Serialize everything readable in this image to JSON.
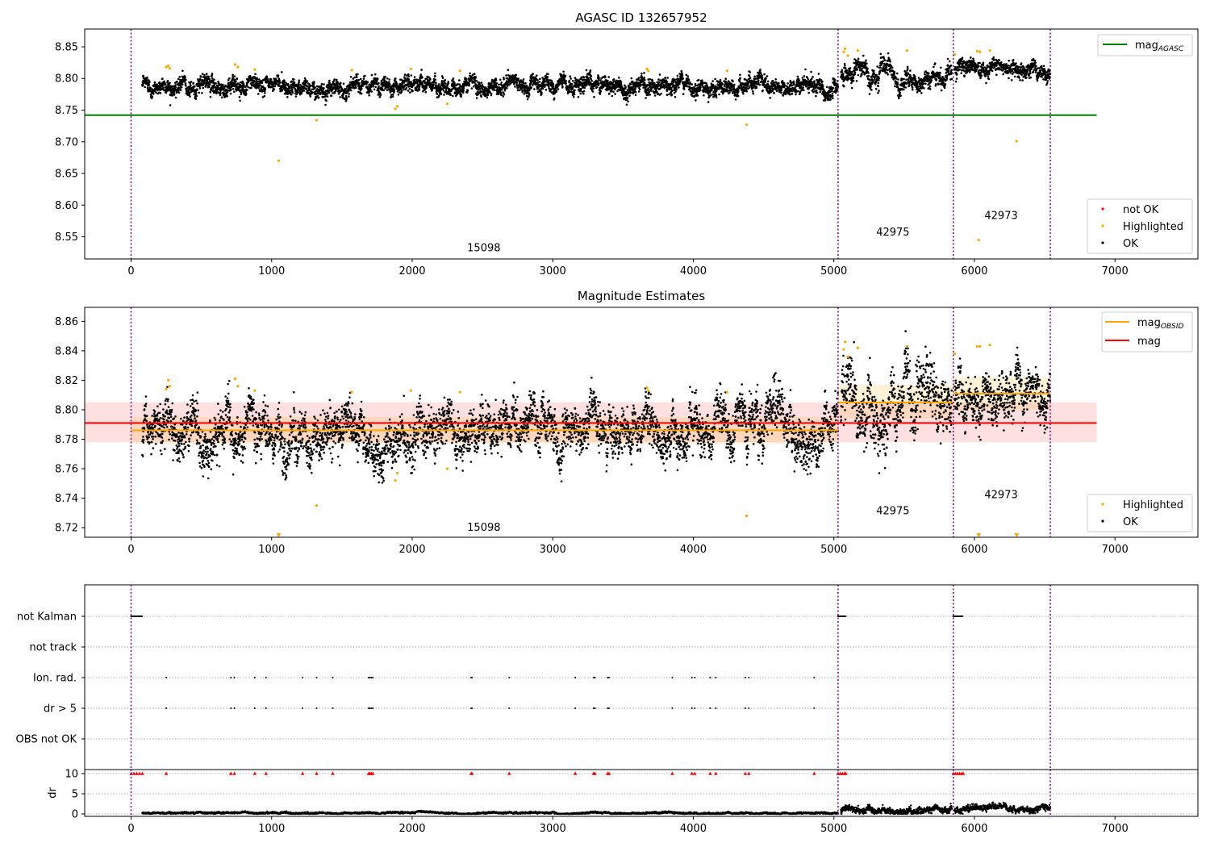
{
  "chart_data": [
    {
      "type": "scatter",
      "title": "AGASC ID 132657952",
      "xlim": [
        -330,
        7590
      ],
      "ylim": [
        8.515,
        8.878
      ],
      "xticks": [
        0,
        1000,
        2000,
        3000,
        4000,
        5000,
        6000,
        7000
      ],
      "yticks": [
        8.55,
        8.6,
        8.65,
        8.7,
        8.75,
        8.8,
        8.85
      ],
      "grid": false,
      "legend_top": {
        "position": "top-right",
        "entries": [
          {
            "label": "mag",
            "sub": "AGASC",
            "color": "#008000",
            "kind": "line"
          }
        ]
      },
      "legend_bottom": {
        "position": "bottom-right",
        "entries": [
          {
            "label": "not OK",
            "color": "#ff0000",
            "kind": "point"
          },
          {
            "label": "Highlighted",
            "color": "#ffa500",
            "kind": "point"
          },
          {
            "label": "OK",
            "color": "#000000",
            "kind": "point"
          }
        ]
      },
      "hlines": [
        {
          "y": 8.742,
          "x": [
            -330,
            6870
          ],
          "color": "#008000",
          "name": "mag_AGASC"
        }
      ],
      "vlines": [
        0,
        5030,
        5850,
        6540
      ],
      "annotations": [
        {
          "text": "15098",
          "x": 2510,
          "y": 8.527
        },
        {
          "text": "42975",
          "x": 5420,
          "y": 8.552
        },
        {
          "text": "42973",
          "x": 6190,
          "y": 8.578
        }
      ],
      "series": [
        {
          "name": "OK",
          "color": "#000000",
          "segments": [
            {
              "x": [
                80,
                5030
              ],
              "mean": 8.789,
              "sd": 0.007
            },
            {
              "x": [
                5050,
                5840
              ],
              "mean": 8.806,
              "sd": 0.009
            },
            {
              "x": [
                5860,
                6540
              ],
              "mean": 8.812,
              "sd": 0.007
            }
          ]
        },
        {
          "name": "Highlighted",
          "color": "#ffa500",
          "points": [
            [
              250,
              8.818
            ],
            [
              265,
              8.82
            ],
            [
              275,
              8.816
            ],
            [
              740,
              8.822
            ],
            [
              760,
              8.818
            ],
            [
              880,
              8.814
            ],
            [
              1050,
              8.67
            ],
            [
              1320,
              8.734
            ],
            [
              1570,
              8.813
            ],
            [
              1880,
              8.752
            ],
            [
              1895,
              8.756
            ],
            [
              1990,
              8.815
            ],
            [
              2250,
              8.76
            ],
            [
              2340,
              8.812
            ],
            [
              3670,
              8.815
            ],
            [
              3680,
              8.812
            ],
            [
              4240,
              8.812
            ],
            [
              4380,
              8.727
            ],
            [
              5080,
              8.847
            ],
            [
              5070,
              8.842
            ],
            [
              5100,
              8.836
            ],
            [
              5170,
              8.844
            ],
            [
              5520,
              8.844
            ],
            [
              5860,
              8.838
            ],
            [
              6020,
              8.843
            ],
            [
              6040,
              8.842
            ],
            [
              6030,
              8.545
            ],
            [
              6110,
              8.844
            ],
            [
              6300,
              8.701
            ]
          ]
        }
      ]
    },
    {
      "type": "scatter",
      "title": "Magnitude Estimates",
      "xlim": [
        -330,
        7590
      ],
      "ylim": [
        8.7135,
        8.8695
      ],
      "xticks": [
        0,
        1000,
        2000,
        3000,
        4000,
        5000,
        6000,
        7000
      ],
      "yticks": [
        8.72,
        8.74,
        8.76,
        8.78,
        8.8,
        8.82,
        8.84,
        8.86
      ],
      "grid": false,
      "legend_top": {
        "position": "top-right",
        "entries": [
          {
            "label": "mag",
            "sub": "OBSID",
            "color": "#ffa500",
            "kind": "line"
          },
          {
            "label": "mag",
            "color": "#ff0000",
            "kind": "line"
          }
        ]
      },
      "legend_bottom": {
        "position": "bottom-right",
        "entries": [
          {
            "label": "Highlighted",
            "color": "#ffa500",
            "kind": "point"
          },
          {
            "label": "OK",
            "color": "#000000",
            "kind": "point"
          }
        ]
      },
      "mag": {
        "y": 8.791,
        "band": [
          8.778,
          8.805
        ],
        "x": [
          -330,
          6870
        ],
        "color": "#ff0000"
      },
      "obsid": [
        {
          "x": [
            0,
            5030
          ],
          "y": 8.786,
          "band": [
            8.777,
            8.795
          ]
        },
        {
          "x": [
            5030,
            5850
          ],
          "y": 8.805,
          "band": [
            8.794,
            8.817
          ]
        },
        {
          "x": [
            5850,
            6540
          ],
          "y": 8.811,
          "band": [
            8.8,
            8.822
          ]
        }
      ],
      "vlines": [
        0,
        5030,
        5850,
        6540
      ],
      "annotations": [
        {
          "text": "15098",
          "x": 2510,
          "y": 8.718
        },
        {
          "text": "42975",
          "x": 5420,
          "y": 8.729
        },
        {
          "text": "42973",
          "x": 6190,
          "y": 8.74
        }
      ],
      "series": [
        {
          "name": "OK",
          "color": "#000000",
          "segments": [
            {
              "x": [
                80,
                5030
              ],
              "mean": 8.786,
              "sd": 0.009
            },
            {
              "x": [
                5050,
                5840
              ],
              "mean": 8.805,
              "sd": 0.012
            },
            {
              "x": [
                5860,
                6540
              ],
              "mean": 8.811,
              "sd": 0.009
            }
          ]
        },
        {
          "name": "Highlighted",
          "color": "#ffa500",
          "points": [
            [
              250,
              8.814
            ],
            [
              265,
              8.82
            ],
            [
              275,
              8.816
            ],
            [
              740,
              8.821
            ],
            [
              760,
              8.816
            ],
            [
              880,
              8.813
            ],
            [
              1320,
              8.735
            ],
            [
              1570,
              8.812
            ],
            [
              1880,
              8.752
            ],
            [
              1895,
              8.757
            ],
            [
              1990,
              8.813
            ],
            [
              2250,
              8.76
            ],
            [
              2340,
              8.812
            ],
            [
              3670,
              8.815
            ],
            [
              3680,
              8.813
            ],
            [
              4240,
              8.812
            ],
            [
              4380,
              8.728
            ],
            [
              5080,
              8.846
            ],
            [
              5070,
              8.841
            ],
            [
              5100,
              8.836
            ],
            [
              5170,
              8.842
            ],
            [
              5520,
              8.843
            ],
            [
              5860,
              8.838
            ],
            [
              6020,
              8.843
            ],
            [
              6040,
              8.843
            ],
            [
              6110,
              8.844
            ]
          ]
        },
        {
          "name": "Highlighted (below range)",
          "color": "#ffa500",
          "marker": "triangle-down",
          "points": [
            [
              1050,
              8.714
            ],
            [
              6030,
              8.714
            ],
            [
              6300,
              8.714
            ]
          ]
        }
      ]
    },
    {
      "type": "scatter",
      "xlim": [
        -330,
        7590
      ],
      "categories": [
        "not Kalman",
        "not track",
        "Ion. rad.",
        "dr > 5",
        "OBS not OK"
      ],
      "grid": true,
      "vlines": [
        0,
        5030,
        5850,
        6540
      ],
      "flags": {
        "not Kalman": [
          [
            0,
            80
          ],
          [
            5030,
            5085
          ],
          [
            5850,
            5920
          ]
        ],
        "not track": [],
        "Ion. rad.": [
          250,
          710,
          735,
          880,
          960,
          1220,
          1320,
          1435,
          1690,
          1700,
          1710,
          1720,
          2420,
          2425,
          2690,
          3160,
          3290,
          3300,
          3390,
          3400,
          3850,
          3990,
          4010,
          4120,
          4160,
          4370,
          4395,
          4860
        ],
        "dr > 5": [
          250,
          710,
          735,
          880,
          960,
          1220,
          1320,
          1435,
          1690,
          1700,
          1710,
          1720,
          2420,
          2425,
          2690,
          3160,
          3290,
          3300,
          3390,
          3400,
          3850,
          3990,
          4010,
          4120,
          4160,
          4370,
          4395,
          4860
        ],
        "OBS not OK": []
      }
    },
    {
      "type": "scatter",
      "ylabel": "dr",
      "xlim": [
        -330,
        7590
      ],
      "ylim": [
        -0.6,
        11
      ],
      "xticks": [
        0,
        1000,
        2000,
        3000,
        4000,
        5000,
        6000,
        7000
      ],
      "yticks": [
        0,
        5,
        10
      ],
      "grid": true,
      "vlines": [
        0,
        5030,
        5850,
        6540
      ],
      "series": [
        {
          "name": "dr",
          "color": "#000000",
          "segments": [
            {
              "x": [
                80,
                5030
              ],
              "mean": 0.25,
              "sd": 0.12
            },
            {
              "x": [
                5050,
                5840
              ],
              "mean": 1.0,
              "sd": 0.45
            },
            {
              "x": [
                5860,
                6540
              ],
              "mean": 1.0,
              "sd": 0.45
            }
          ]
        },
        {
          "name": "dr > 10",
          "color": "#ff0000",
          "marker": "triangle-up",
          "y": 10,
          "x": [
            0,
            20,
            40,
            60,
            80,
            250,
            710,
            735,
            880,
            960,
            1220,
            1320,
            1435,
            1690,
            1700,
            1710,
            1720,
            2420,
            2425,
            2690,
            3160,
            3290,
            3300,
            3390,
            3400,
            3850,
            3990,
            4010,
            4120,
            4160,
            4370,
            4395,
            4860,
            5030,
            5045,
            5060,
            5075,
            5085,
            5850,
            5865,
            5880,
            5895,
            5910,
            5920
          ]
        }
      ]
    }
  ]
}
